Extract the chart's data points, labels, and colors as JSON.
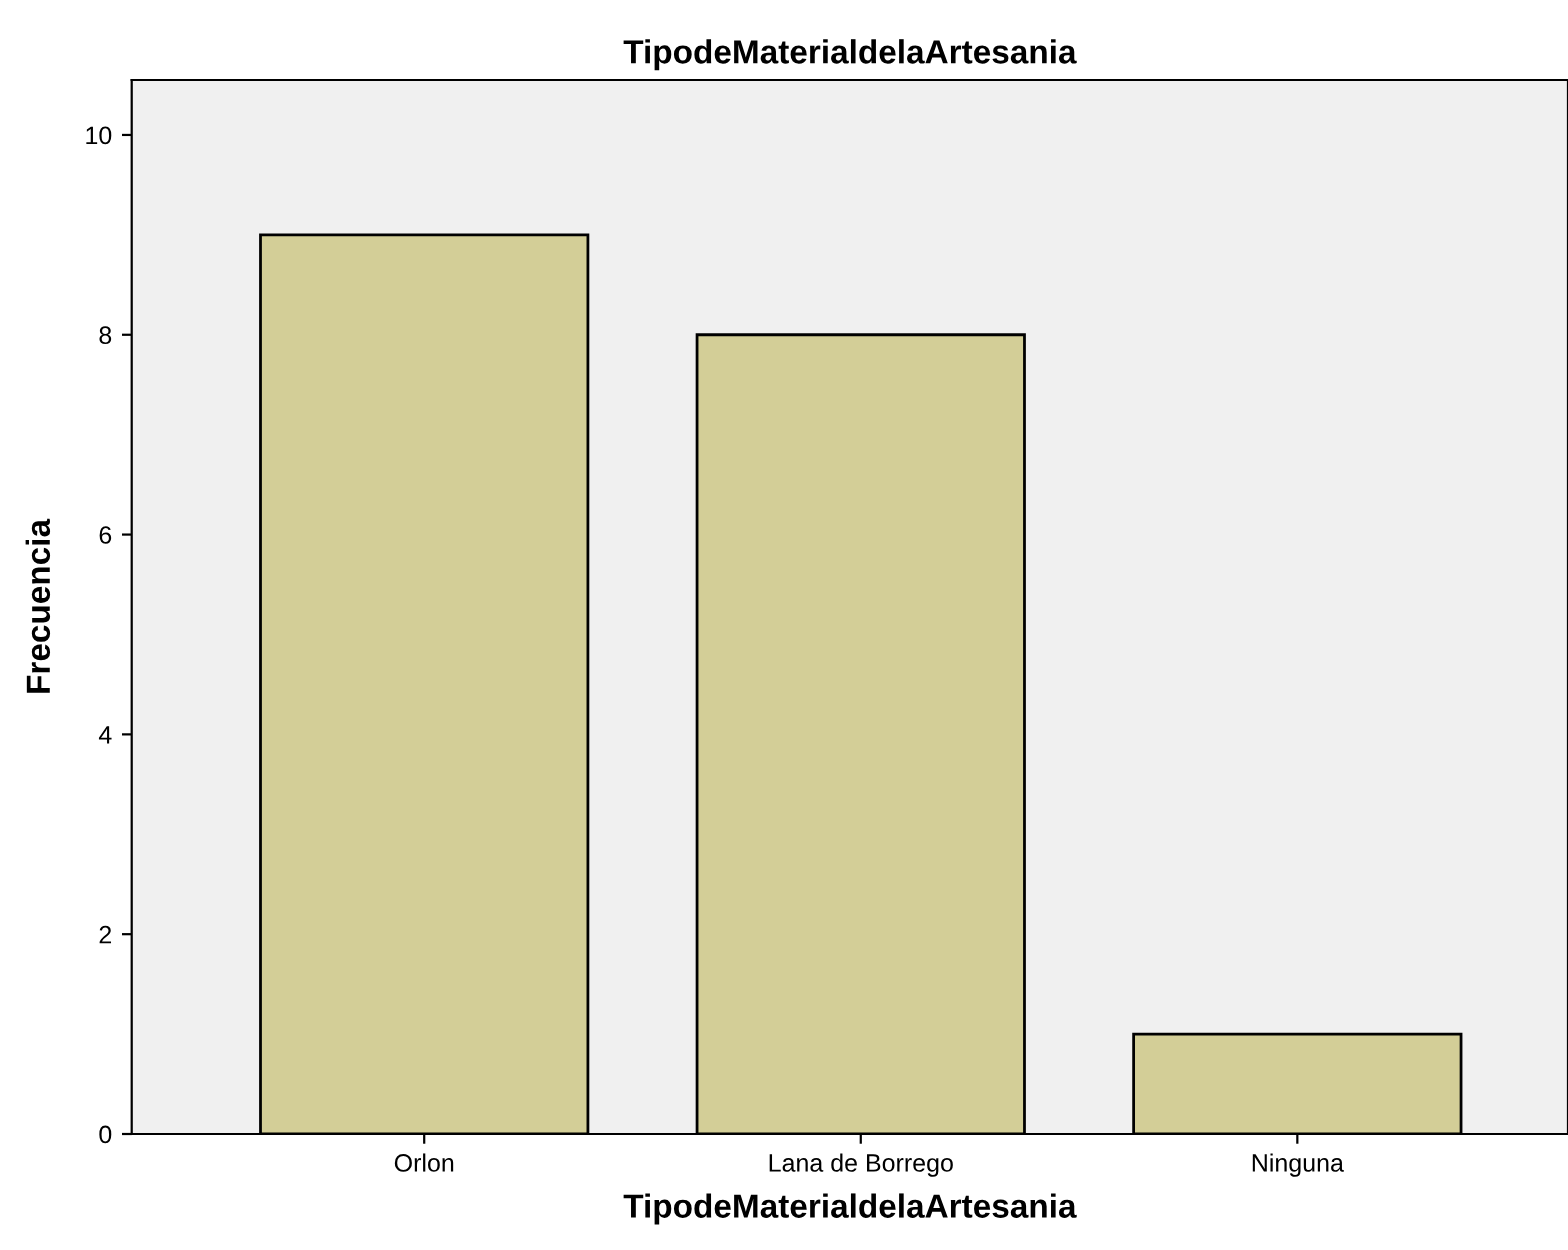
{
  "chart_data": {
    "type": "bar",
    "title": "TipodeMaterialdelaArtesania",
    "xlabel": "TipodeMaterialdelaArtesania",
    "ylabel": "Frecuencia",
    "categories": [
      "Orlon",
      "Lana de Borrego",
      "Ninguna"
    ],
    "values": [
      9,
      8,
      1
    ],
    "color": "#d3ce97",
    "ylim": [
      0,
      10.55
    ],
    "yticks": [
      0,
      2,
      4,
      6,
      8,
      10
    ],
    "grid": false
  }
}
